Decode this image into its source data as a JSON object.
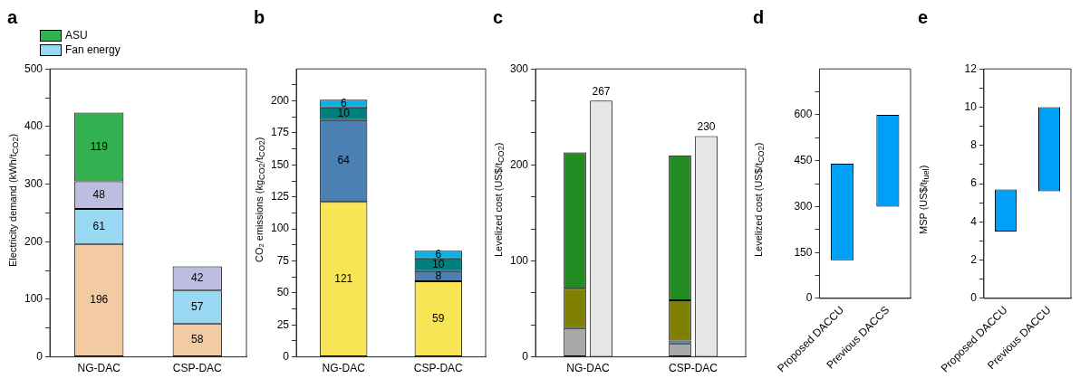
{
  "chart_data": [
    {
      "type": "bar",
      "title": "a",
      "ylabel": "Electricity demand (kWh/t$_{CO2}$)",
      "categories": [
        "NG-DAC",
        "CSP-DAC"
      ],
      "stacked": true,
      "grid": false,
      "legend": "top",
      "data_labels": true,
      "ylim": [
        0,
        500
      ],
      "yticks": [
        0,
        {
          "value": 50,
          "label": null
        },
        100,
        {
          "value": 150,
          "label": null
        },
        200,
        {
          "value": 250,
          "label": null
        },
        300,
        {
          "value": 350,
          "label": null
        },
        400,
        {
          "value": 450,
          "label": null
        },
        500
      ],
      "series": [
        {
          "color": "#f2cba3",
          "values": [
            196,
            58
          ]
        },
        {
          "name": "Fan energy",
          "color": "#98d8f2",
          "values": [
            61,
            57
          ]
        },
        {
          "color": "#bcbde0",
          "values": [
            48,
            42
          ]
        },
        {
          "name": "ASU",
          "color": "#33b04f",
          "values": [
            119,
            null
          ]
        }
      ]
    },
    {
      "type": "bar",
      "title": "b",
      "ylabel": "CO₂ emissions (kg$_{CO2}$/t$_{CO2}$)",
      "categories": [
        "NG-DAC",
        "CSP-DAC"
      ],
      "stacked": true,
      "grid": false,
      "data_labels": true,
      "ylim": [
        0,
        225
      ],
      "yticks": [
        0,
        {
          "value": 12.5,
          "label": null
        },
        25,
        {
          "value": 37.5,
          "label": null
        },
        50,
        {
          "value": 62.5,
          "label": null
        },
        75,
        {
          "value": 87.5,
          "label": null
        },
        100,
        {
          "value": 112.5,
          "label": null
        },
        125,
        {
          "value": 137.5,
          "label": null
        },
        150,
        {
          "value": 162.5,
          "label": null
        },
        175,
        {
          "value": 187.5,
          "label": null
        },
        200,
        {
          "value": 212.5,
          "label": null
        }
      ],
      "series": [
        {
          "color": "#f8e555",
          "values": [
            121,
            59
          ]
        },
        {
          "color": "#4a80b4",
          "values": [
            64,
            8
          ]
        },
        {
          "color": "#007f7f",
          "values": [
            10,
            10
          ]
        },
        {
          "color": "#0ab0e6",
          "values": [
            6,
            6
          ]
        }
      ]
    },
    {
      "type": "bar",
      "title": "c",
      "ylabel": "Levelized cost (US$/t$_{CO2}$)",
      "categories": [
        "NG-DAC",
        "CSP-DAC"
      ],
      "stacked": true,
      "grid": false,
      "ylim": [
        0,
        300
      ],
      "yticks": [
        0,
        {
          "value": 33.3,
          "label": null
        },
        {
          "value": 66.7,
          "label": null
        },
        100,
        {
          "value": 133.3,
          "label": null
        },
        {
          "value": 166.7,
          "label": null
        },
        200,
        {
          "value": 233.3,
          "label": null
        },
        {
          "value": 266.7,
          "label": null
        },
        300
      ],
      "series": [
        {
          "color": "#a8a8a8",
          "values": [
            30,
            14
          ]
        },
        {
          "color": "#4a80b4",
          "values": [
            null,
            3
          ]
        },
        {
          "color": "#7f7f00",
          "values": [
            41,
            42
          ]
        },
        {
          "color": "#228b22",
          "values": [
            142,
            151
          ]
        },
        {
          "type": "bar",
          "axis": "y2",
          "color": "#e6e6e6",
          "values": [
            267,
            230
          ],
          "value_labels": [
            "267",
            "230"
          ]
        }
      ],
      "y2lim": [
        0,
        300
      ]
    },
    {
      "type": "bar",
      "title": "d",
      "ylabel": "Levelized cost (US$/t$_{CO2}$)",
      "categories": [
        "Proposed DACCU",
        "Previous DACCS"
      ],
      "grid": false,
      "ylim": [
        0,
        750
      ],
      "yticks": [
        0,
        {
          "value": 75,
          "label": null
        },
        150,
        {
          "value": 225,
          "label": null
        },
        300,
        {
          "value": 375,
          "label": null
        },
        450,
        {
          "value": 525,
          "label": null
        },
        600,
        {
          "value": 675,
          "label": null
        }
      ],
      "color": "#00a0f6",
      "base": [
        125,
        300
      ],
      "values": [
        315,
        300
      ]
    },
    {
      "type": "bar",
      "title": "e",
      "ylabel": "MSP (US$/t$_{fuel}$)",
      "categories": [
        "Proposed DACCU",
        "Previous DACCU"
      ],
      "grid": false,
      "ylim": [
        0,
        12
      ],
      "yticks": [
        0,
        {
          "value": 1,
          "label": null
        },
        2,
        {
          "value": 3,
          "label": null
        },
        4,
        {
          "value": 5,
          "label": null
        },
        6,
        {
          "value": 7,
          "label": null
        },
        8,
        {
          "value": 9,
          "label": null
        },
        10,
        {
          "value": 11,
          "label": null
        },
        12
      ],
      "color": "#00a0f6",
      "base": [
        3.5,
        5.6
      ],
      "values": [
        2.2,
        4.4
      ]
    }
  ]
}
